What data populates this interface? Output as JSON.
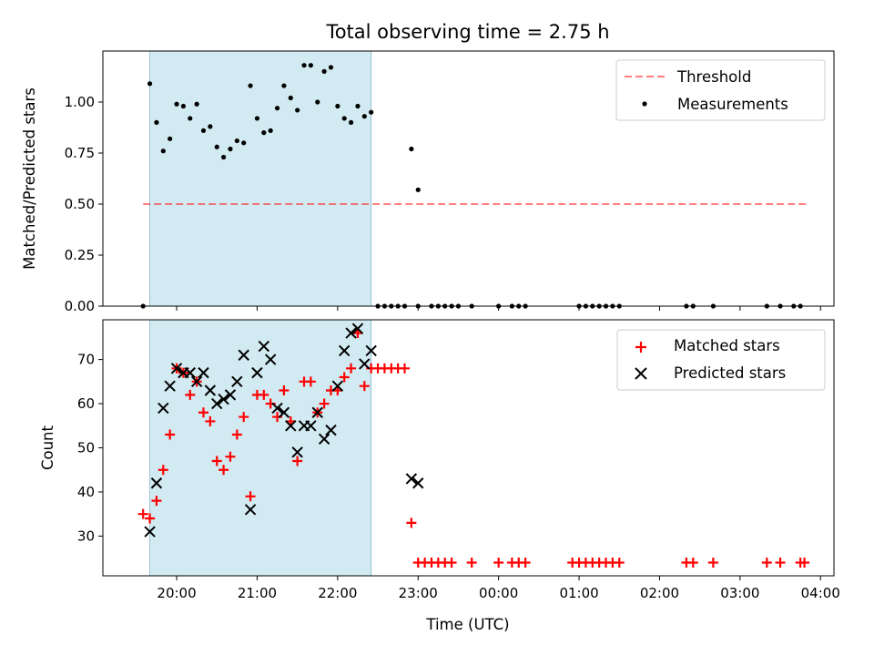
{
  "chart_data": {
    "type": "scatter",
    "title": "Total observing time = 2.75 h",
    "xlabel": "Time (UTC)",
    "x_tick_labels": [
      "20:00",
      "21:00",
      "22:00",
      "23:00",
      "00:00",
      "01:00",
      "02:00",
      "03:00",
      "04:00"
    ],
    "shaded_span": {
      "from": "19:40",
      "to": "22:25",
      "color": "#add8e6"
    },
    "panels": [
      {
        "ylabel": "Matched/Predicted stars",
        "ylim": [
          0,
          1.25
        ],
        "y_ticks": [
          0.0,
          0.25,
          0.5,
          0.75,
          1.0
        ],
        "y_tick_labels": [
          "0.00",
          "0.25",
          "0.50",
          "0.75",
          "1.00"
        ],
        "legend_position": "top-right",
        "threshold": {
          "name": "Threshold",
          "value": 0.5,
          "from": "19:35",
          "to": "03:50",
          "color": "#ff0000",
          "style": "dashed"
        },
        "series": [
          {
            "name": "Measurements",
            "marker": "dot",
            "color": "#000000",
            "points": [
              [
                "19:35",
                0.0
              ],
              [
                "19:40",
                1.09
              ],
              [
                "19:45",
                0.9
              ],
              [
                "19:50",
                0.76
              ],
              [
                "19:55",
                0.82
              ],
              [
                "20:00",
                0.99
              ],
              [
                "20:05",
                0.98
              ],
              [
                "20:10",
                0.92
              ],
              [
                "20:15",
                0.99
              ],
              [
                "20:20",
                0.86
              ],
              [
                "20:25",
                0.88
              ],
              [
                "20:30",
                0.78
              ],
              [
                "20:35",
                0.73
              ],
              [
                "20:40",
                0.77
              ],
              [
                "20:45",
                0.81
              ],
              [
                "20:50",
                0.8
              ],
              [
                "20:55",
                1.08
              ],
              [
                "21:00",
                0.92
              ],
              [
                "21:05",
                0.85
              ],
              [
                "21:10",
                0.86
              ],
              [
                "21:15",
                0.97
              ],
              [
                "21:20",
                1.08
              ],
              [
                "21:25",
                1.02
              ],
              [
                "21:30",
                0.96
              ],
              [
                "21:35",
                1.18
              ],
              [
                "21:40",
                1.18
              ],
              [
                "21:45",
                1.0
              ],
              [
                "21:50",
                1.15
              ],
              [
                "21:55",
                1.17
              ],
              [
                "22:00",
                0.98
              ],
              [
                "22:05",
                0.92
              ],
              [
                "22:10",
                0.9
              ],
              [
                "22:15",
                0.98
              ],
              [
                "22:20",
                0.93
              ],
              [
                "22:25",
                0.95
              ],
              [
                "22:30",
                0.0
              ],
              [
                "22:35",
                0.0
              ],
              [
                "22:40",
                0.0
              ],
              [
                "22:45",
                0.0
              ],
              [
                "22:50",
                0.0
              ],
              [
                "22:55",
                0.77
              ],
              [
                "23:00",
                0.57
              ],
              [
                "23:00",
                0.0
              ],
              [
                "23:10",
                0.0
              ],
              [
                "23:15",
                0.0
              ],
              [
                "23:20",
                0.0
              ],
              [
                "23:25",
                0.0
              ],
              [
                "23:30",
                0.0
              ],
              [
                "23:40",
                0.0
              ],
              [
                "00:00",
                0.0
              ],
              [
                "00:10",
                0.0
              ],
              [
                "00:15",
                0.0
              ],
              [
                "00:20",
                0.0
              ],
              [
                "01:00",
                0.0
              ],
              [
                "01:05",
                0.0
              ],
              [
                "01:10",
                0.0
              ],
              [
                "01:15",
                0.0
              ],
              [
                "01:20",
                0.0
              ],
              [
                "01:25",
                0.0
              ],
              [
                "01:30",
                0.0
              ],
              [
                "02:20",
                0.0
              ],
              [
                "02:25",
                0.0
              ],
              [
                "02:40",
                0.0
              ],
              [
                "03:20",
                0.0
              ],
              [
                "03:30",
                0.0
              ],
              [
                "03:40",
                0.0
              ],
              [
                "03:45",
                0.0
              ]
            ]
          }
        ]
      },
      {
        "ylabel": "Count",
        "ylim": [
          21,
          79
        ],
        "y_ticks": [
          30,
          40,
          50,
          60,
          70
        ],
        "y_tick_labels": [
          "30",
          "40",
          "50",
          "60",
          "70"
        ],
        "legend_position": "top-right",
        "series": [
          {
            "name": "Matched stars",
            "marker": "plus",
            "color": "#ff0000",
            "points": [
              [
                "19:35",
                35
              ],
              [
                "19:40",
                34
              ],
              [
                "19:45",
                38
              ],
              [
                "19:50",
                45
              ],
              [
                "19:55",
                53
              ],
              [
                "20:00",
                68
              ],
              [
                "20:05",
                67
              ],
              [
                "20:10",
                62
              ],
              [
                "20:15",
                65
              ],
              [
                "20:20",
                58
              ],
              [
                "20:25",
                56
              ],
              [
                "20:30",
                47
              ],
              [
                "20:35",
                45
              ],
              [
                "20:40",
                48
              ],
              [
                "20:45",
                53
              ],
              [
                "20:50",
                57
              ],
              [
                "20:55",
                39
              ],
              [
                "21:00",
                62
              ],
              [
                "21:05",
                62
              ],
              [
                "21:10",
                60
              ],
              [
                "21:15",
                57
              ],
              [
                "21:20",
                63
              ],
              [
                "21:25",
                56
              ],
              [
                "21:30",
                47
              ],
              [
                "21:35",
                65
              ],
              [
                "21:40",
                65
              ],
              [
                "21:45",
                58
              ],
              [
                "21:50",
                60
              ],
              [
                "21:55",
                63
              ],
              [
                "22:00",
                63
              ],
              [
                "22:05",
                66
              ],
              [
                "22:10",
                68
              ],
              [
                "22:15",
                76
              ],
              [
                "22:20",
                64
              ],
              [
                "22:25",
                68
              ],
              [
                "22:30",
                68
              ],
              [
                "22:35",
                68
              ],
              [
                "22:40",
                68
              ],
              [
                "22:45",
                68
              ],
              [
                "22:50",
                68
              ],
              [
                "22:55",
                33
              ],
              [
                "23:00",
                24
              ],
              [
                "23:05",
                24
              ],
              [
                "23:10",
                24
              ],
              [
                "23:15",
                24
              ],
              [
                "23:20",
                24
              ],
              [
                "23:25",
                24
              ],
              [
                "23:40",
                24
              ],
              [
                "00:00",
                24
              ],
              [
                "00:10",
                24
              ],
              [
                "00:15",
                24
              ],
              [
                "00:20",
                24
              ],
              [
                "00:55",
                24
              ],
              [
                "01:00",
                24
              ],
              [
                "01:05",
                24
              ],
              [
                "01:10",
                24
              ],
              [
                "01:15",
                24
              ],
              [
                "01:20",
                24
              ],
              [
                "01:25",
                24
              ],
              [
                "01:30",
                24
              ],
              [
                "02:20",
                24
              ],
              [
                "02:25",
                24
              ],
              [
                "02:40",
                24
              ],
              [
                "03:20",
                24
              ],
              [
                "03:30",
                24
              ],
              [
                "03:45",
                24
              ],
              [
                "03:48",
                24
              ]
            ]
          },
          {
            "name": "Predicted stars",
            "marker": "x",
            "color": "#000000",
            "points": [
              [
                "19:40",
                31
              ],
              [
                "19:45",
                42
              ],
              [
                "19:50",
                59
              ],
              [
                "19:55",
                64
              ],
              [
                "20:00",
                68
              ],
              [
                "20:05",
                67
              ],
              [
                "20:10",
                67
              ],
              [
                "20:15",
                65
              ],
              [
                "20:20",
                67
              ],
              [
                "20:25",
                63
              ],
              [
                "20:30",
                60
              ],
              [
                "20:35",
                61
              ],
              [
                "20:40",
                62
              ],
              [
                "20:45",
                65
              ],
              [
                "20:50",
                71
              ],
              [
                "20:55",
                36
              ],
              [
                "21:00",
                67
              ],
              [
                "21:05",
                73
              ],
              [
                "21:10",
                70
              ],
              [
                "21:15",
                59
              ],
              [
                "21:20",
                58
              ],
              [
                "21:25",
                55
              ],
              [
                "21:30",
                49
              ],
              [
                "21:35",
                55
              ],
              [
                "21:40",
                55
              ],
              [
                "21:45",
                58
              ],
              [
                "21:50",
                52
              ],
              [
                "21:55",
                54
              ],
              [
                "22:00",
                64
              ],
              [
                "22:05",
                72
              ],
              [
                "22:10",
                76
              ],
              [
                "22:15",
                77
              ],
              [
                "22:20",
                69
              ],
              [
                "22:25",
                72
              ],
              [
                "22:55",
                43
              ],
              [
                "23:00",
                42
              ]
            ]
          }
        ]
      }
    ]
  }
}
